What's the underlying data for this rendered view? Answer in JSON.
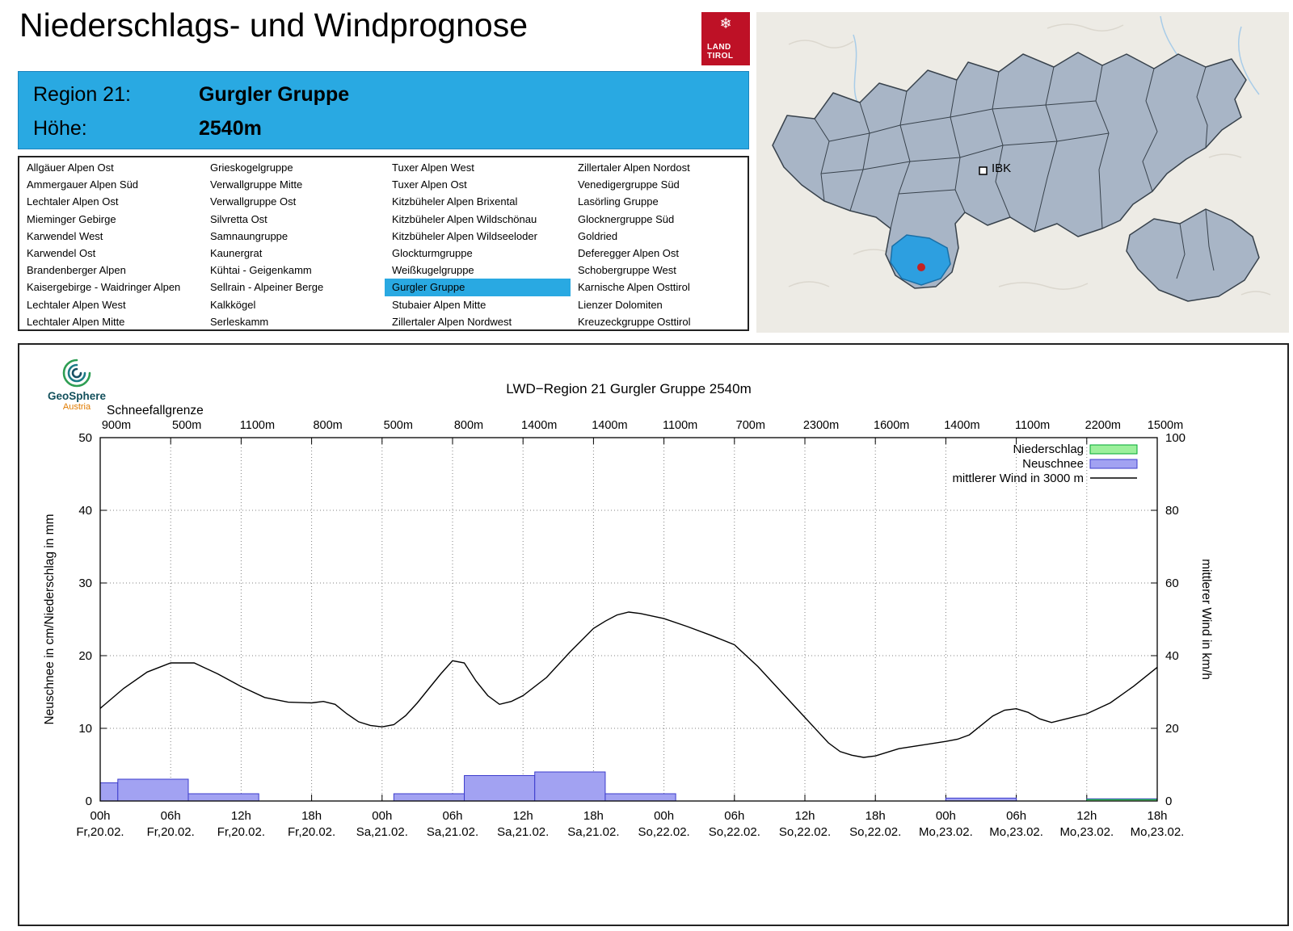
{
  "header": {
    "title": "Niederschlags- und Windprognose",
    "logo_line1": "LAND",
    "logo_line2": "TIROL",
    "snowflake_icon": "❄"
  },
  "region_info": {
    "region_label": "Region 21:",
    "region_name": "Gurgler Gruppe",
    "altitude_label": "Höhe:",
    "altitude_value": "2540m",
    "box_color": "#29A9E2"
  },
  "region_list": {
    "selected": "Gurgler Gruppe",
    "highlight_color": "#29A9E2",
    "columns": [
      [
        "Allgäuer Alpen Ost",
        "Ammergauer Alpen Süd",
        "Lechtaler Alpen Ost",
        "Mieminger Gebirge",
        "Karwendel West",
        "Karwendel Ost",
        "Brandenberger Alpen",
        "Kaisergebirge - Waidringer Alpen",
        "Lechtaler Alpen West",
        "Lechtaler Alpen Mitte"
      ],
      [
        "Grieskogelgruppe",
        "Verwallgruppe Mitte",
        "Verwallgruppe Ost",
        "Silvretta Ost",
        "Samnaungruppe",
        "Kaunergrat",
        "Kühtai - Geigenkamm",
        "Sellrain - Alpeiner Berge",
        "Kalkkögel",
        "Serleskamm"
      ],
      [
        "Tuxer Alpen West",
        "Tuxer Alpen Ost",
        "Kitzbüheler Alpen Brixental",
        "Kitzbüheler Alpen Wildschönau",
        "Kitzbüheler Alpen Wildseeloder",
        "Glockturmgruppe",
        "Weißkugelgruppe",
        "Gurgler Gruppe",
        "Stubaier Alpen Mitte",
        "Zillertaler Alpen Nordwest"
      ],
      [
        "Zillertaler Alpen Nordost",
        "Venedigergruppe Süd",
        "Lasörling Gruppe",
        "Glocknergruppe Süd",
        "Goldried",
        "Deferegger Alpen Ost",
        "Schobergruppe West",
        "Karnische Alpen Osttirol",
        "Lienzer Dolomiten",
        "Kreuzeckgruppe Osttirol"
      ]
    ]
  },
  "map": {
    "city_label": "IBK",
    "selected_region_color": "#2D9FE0",
    "marker_color": "#C32222"
  },
  "chart_branding": {
    "name": "GeoSphere",
    "sub": "Austria"
  },
  "chart_data": {
    "type": "bar+line",
    "title": "LWD−Region 21 Gurgler Gruppe 2540m",
    "snowline": {
      "label": "Schneefallgrenze",
      "values": [
        "900m",
        "500m",
        "1100m",
        "800m",
        "500m",
        "800m",
        "1400m",
        "1400m",
        "1100m",
        "700m",
        "2300m",
        "1600m",
        "1400m",
        "1100m",
        "2200m",
        "1500m"
      ]
    },
    "y_left": {
      "label": "Neuschnee in cm/Niederschlag in mm",
      "min": 0,
      "max": 50,
      "ticks": [
        0,
        10,
        20,
        30,
        40,
        50
      ]
    },
    "y_right": {
      "label": "mittlerer Wind in km/h",
      "min": 0,
      "max": 100,
      "ticks": [
        0,
        20,
        40,
        60,
        80,
        100
      ]
    },
    "x_hours_span": 90,
    "x_ticks": [
      {
        "hour": "00h",
        "date": "Fr,20.02."
      },
      {
        "hour": "06h",
        "date": "Fr,20.02."
      },
      {
        "hour": "12h",
        "date": "Fr,20.02."
      },
      {
        "hour": "18h",
        "date": "Fr,20.02."
      },
      {
        "hour": "00h",
        "date": "Sa,21.02."
      },
      {
        "hour": "06h",
        "date": "Sa,21.02."
      },
      {
        "hour": "12h",
        "date": "Sa,21.02."
      },
      {
        "hour": "18h",
        "date": "Sa,21.02."
      },
      {
        "hour": "00h",
        "date": "So,22.02."
      },
      {
        "hour": "06h",
        "date": "So,22.02."
      },
      {
        "hour": "12h",
        "date": "So,22.02."
      },
      {
        "hour": "18h",
        "date": "So,22.02."
      },
      {
        "hour": "00h",
        "date": "Mo,23.02."
      },
      {
        "hour": "06h",
        "date": "Mo,23.02."
      },
      {
        "hour": "12h",
        "date": "Mo,23.02."
      },
      {
        "hour": "18h",
        "date": "Mo,23.02."
      }
    ],
    "legend": [
      {
        "label": "Niederschlag",
        "swatch": "box",
        "fill": "#9CF09C",
        "stroke": "#00A830"
      },
      {
        "label": "Neuschnee",
        "swatch": "box",
        "fill": "#A2A2F2",
        "stroke": "#3C3CCC"
      },
      {
        "label": "mittlerer Wind in 3000 m",
        "swatch": "line",
        "stroke": "#000000"
      }
    ],
    "wind_line_color": "#000000",
    "neuschnee_bars": [
      {
        "from_h": 0,
        "to_h": 1.5,
        "cm": 2.5
      },
      {
        "from_h": 1.5,
        "to_h": 7.5,
        "cm": 3
      },
      {
        "from_h": 7.5,
        "to_h": 13.5,
        "cm": 1
      },
      {
        "from_h": 25,
        "to_h": 31,
        "cm": 1
      },
      {
        "from_h": 31,
        "to_h": 37,
        "cm": 3.5
      },
      {
        "from_h": 37,
        "to_h": 43,
        "cm": 4
      },
      {
        "from_h": 43,
        "to_h": 49,
        "cm": 1
      },
      {
        "from_h": 72,
        "to_h": 78,
        "cm": 0.4
      },
      {
        "from_h": 84,
        "to_h": 90,
        "cm": 0.3
      }
    ],
    "niederschlag_bars": [
      {
        "from_h": 84,
        "to_h": 90,
        "mm": 0.2
      }
    ],
    "wind_series_kmh": [
      [
        0,
        25.5
      ],
      [
        2,
        31
      ],
      [
        4,
        35.5
      ],
      [
        6,
        38
      ],
      [
        8,
        38
      ],
      [
        10,
        35
      ],
      [
        12,
        31.5
      ],
      [
        14,
        28.5
      ],
      [
        16,
        27.2
      ],
      [
        18,
        27
      ],
      [
        19,
        27.4
      ],
      [
        20,
        26.6
      ],
      [
        21,
        24
      ],
      [
        22,
        21.8
      ],
      [
        23,
        20.8
      ],
      [
        24,
        20.4
      ],
      [
        25,
        21
      ],
      [
        26,
        23.5
      ],
      [
        27,
        27
      ],
      [
        28,
        31
      ],
      [
        29,
        35
      ],
      [
        30,
        38.6
      ],
      [
        31,
        38
      ],
      [
        32,
        33
      ],
      [
        33,
        29
      ],
      [
        34,
        26.6
      ],
      [
        35,
        27.4
      ],
      [
        36,
        29
      ],
      [
        38,
        34
      ],
      [
        40,
        41
      ],
      [
        42,
        47.5
      ],
      [
        43,
        49.5
      ],
      [
        44,
        51.2
      ],
      [
        45,
        52
      ],
      [
        46,
        51.6
      ],
      [
        48,
        50.2
      ],
      [
        50,
        48
      ],
      [
        52,
        45.6
      ],
      [
        54,
        43
      ],
      [
        56,
        37
      ],
      [
        58,
        30
      ],
      [
        60,
        23
      ],
      [
        62,
        16
      ],
      [
        63,
        13.6
      ],
      [
        64,
        12.6
      ],
      [
        65,
        12
      ],
      [
        66,
        12.4
      ],
      [
        68,
        14.4
      ],
      [
        70,
        15.4
      ],
      [
        72,
        16.4
      ],
      [
        73,
        17
      ],
      [
        74,
        18.2
      ],
      [
        76,
        23.4
      ],
      [
        77,
        25
      ],
      [
        78,
        25.4
      ],
      [
        79,
        24.4
      ],
      [
        80,
        22.6
      ],
      [
        81,
        21.6
      ],
      [
        82,
        22.4
      ],
      [
        84,
        24
      ],
      [
        86,
        27
      ],
      [
        88,
        31.6
      ],
      [
        90,
        36.8
      ]
    ]
  }
}
